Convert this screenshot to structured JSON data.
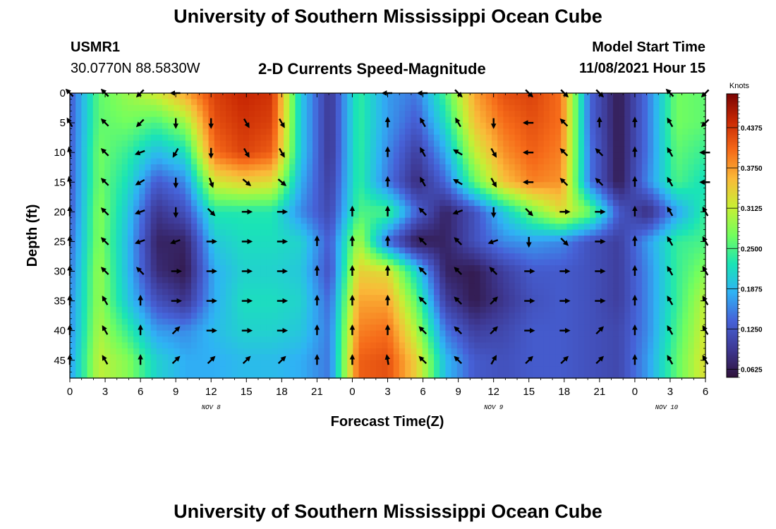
{
  "header": {
    "title": "University of Southern Mississippi Ocean Cube",
    "station_id": "USMR1",
    "station_coords": "30.0770N  88.5830W",
    "plot_title": "2-D Currents Speed-Magnitude",
    "model_label": "Model Start Time",
    "model_time": "11/08/2021 Hour 15",
    "footer_title": "University of Southern Mississippi Ocean Cube"
  },
  "chart_data": {
    "type": "heatmap",
    "title": "2-D Currents Speed-Magnitude",
    "xlabel": "Forecast Time(Z)",
    "ylabel": "Depth (ft)",
    "x_tick_labels": [
      "0",
      "3",
      "6",
      "9",
      "12",
      "15",
      "18",
      "21",
      "0",
      "3",
      "6",
      "9",
      "12",
      "15",
      "18",
      "21",
      "0",
      "3",
      "6"
    ],
    "date_labels": [
      {
        "label": "NOV 8",
        "at_tick": 4
      },
      {
        "label": "NOV 9",
        "at_tick": 12
      },
      {
        "label": "NOV 10",
        "at_tick": 16.9
      }
    ],
    "x_range_hours": [
      0,
      54
    ],
    "y_ticks": [
      0,
      5,
      10,
      15,
      20,
      25,
      30,
      35,
      40,
      45
    ],
    "y_range_ft": [
      0,
      48
    ],
    "y_inverted": true,
    "colorbar": {
      "unit": "Knots",
      "ticks": [
        "0.4375",
        "0.3750",
        "0.3125",
        "0.2500",
        "0.1875",
        "0.1250",
        "0.0625"
      ],
      "range": [
        0.05,
        0.49
      ]
    },
    "arrow_times_hours": [
      0,
      3,
      6,
      9,
      12,
      15,
      18,
      21,
      24,
      27,
      30,
      33,
      36,
      39,
      42,
      45,
      48,
      51,
      54
    ],
    "arrow_depths_ft": [
      0,
      5,
      10,
      15,
      20,
      25,
      30,
      35,
      40,
      45
    ],
    "speed_knots_by_depth": [
      [
        0.13,
        0.26,
        0.29,
        0.32,
        0.37,
        0.43,
        0.45,
        0.44,
        0.2,
        0.09,
        0.24,
        0.17,
        0.15,
        0.25,
        0.37,
        0.42,
        0.43,
        0.4,
        0.14,
        0.06,
        0.15,
        0.27,
        0.26
      ],
      [
        0.13,
        0.26,
        0.27,
        0.25,
        0.29,
        0.42,
        0.44,
        0.43,
        0.2,
        0.09,
        0.24,
        0.17,
        0.13,
        0.22,
        0.35,
        0.4,
        0.42,
        0.4,
        0.14,
        0.06,
        0.15,
        0.27,
        0.26
      ],
      [
        0.13,
        0.27,
        0.24,
        0.19,
        0.22,
        0.4,
        0.43,
        0.41,
        0.2,
        0.09,
        0.24,
        0.16,
        0.1,
        0.18,
        0.31,
        0.38,
        0.41,
        0.39,
        0.15,
        0.06,
        0.15,
        0.26,
        0.24
      ],
      [
        0.13,
        0.27,
        0.22,
        0.13,
        0.16,
        0.32,
        0.34,
        0.33,
        0.18,
        0.1,
        0.24,
        0.15,
        0.08,
        0.14,
        0.26,
        0.35,
        0.39,
        0.38,
        0.15,
        0.06,
        0.16,
        0.25,
        0.22
      ],
      [
        0.13,
        0.28,
        0.2,
        0.09,
        0.12,
        0.23,
        0.23,
        0.23,
        0.16,
        0.11,
        0.25,
        0.25,
        0.14,
        0.07,
        0.12,
        0.2,
        0.27,
        0.33,
        0.27,
        0.13,
        0.08,
        0.17,
        0.24,
        0.22
      ],
      [
        0.14,
        0.28,
        0.19,
        0.07,
        0.07,
        0.2,
        0.22,
        0.22,
        0.21,
        0.13,
        0.3,
        0.14,
        0.06,
        0.07,
        0.12,
        0.16,
        0.17,
        0.16,
        0.12,
        0.1,
        0.17,
        0.24,
        0.25
      ],
      [
        0.15,
        0.29,
        0.19,
        0.08,
        0.06,
        0.18,
        0.21,
        0.21,
        0.2,
        0.12,
        0.34,
        0.33,
        0.21,
        0.07,
        0.06,
        0.1,
        0.13,
        0.13,
        0.12,
        0.1,
        0.16,
        0.24,
        0.28
      ],
      [
        0.16,
        0.29,
        0.2,
        0.12,
        0.09,
        0.18,
        0.22,
        0.22,
        0.21,
        0.14,
        0.37,
        0.37,
        0.26,
        0.1,
        0.06,
        0.09,
        0.12,
        0.13,
        0.12,
        0.1,
        0.16,
        0.24,
        0.31
      ],
      [
        0.16,
        0.3,
        0.24,
        0.17,
        0.16,
        0.19,
        0.21,
        0.21,
        0.2,
        0.15,
        0.39,
        0.4,
        0.3,
        0.15,
        0.1,
        0.11,
        0.13,
        0.13,
        0.12,
        0.11,
        0.16,
        0.25,
        0.32
      ],
      [
        0.17,
        0.31,
        0.28,
        0.21,
        0.18,
        0.18,
        0.19,
        0.19,
        0.18,
        0.15,
        0.41,
        0.42,
        0.34,
        0.19,
        0.13,
        0.12,
        0.13,
        0.13,
        0.12,
        0.11,
        0.17,
        0.26,
        0.33
      ]
    ],
    "arrow_directions_deg_by_depth": [
      [
        135,
        135,
        225,
        180,
        null,
        null,
        null,
        null,
        null,
        180,
        180,
        315,
        null,
        315,
        315,
        315,
        null,
        135,
        225
      ],
      [
        120,
        135,
        225,
        270,
        270,
        300,
        300,
        null,
        null,
        90,
        120,
        120,
        270,
        180,
        135,
        90,
        90,
        120,
        225
      ],
      [
        100,
        135,
        200,
        240,
        270,
        300,
        300,
        null,
        null,
        90,
        120,
        150,
        300,
        180,
        135,
        135,
        90,
        120,
        180
      ],
      [
        100,
        135,
        210,
        270,
        290,
        320,
        320,
        null,
        null,
        90,
        120,
        150,
        300,
        180,
        135,
        135,
        90,
        120,
        180
      ],
      [
        90,
        135,
        200,
        270,
        315,
        0,
        0,
        null,
        90,
        90,
        135,
        200,
        270,
        315,
        0,
        0,
        90,
        120,
        120
      ],
      [
        90,
        135,
        200,
        200,
        0,
        0,
        0,
        90,
        90,
        90,
        135,
        135,
        200,
        270,
        315,
        0,
        90,
        120,
        120
      ],
      [
        90,
        135,
        135,
        0,
        0,
        0,
        0,
        90,
        90,
        90,
        135,
        135,
        135,
        0,
        0,
        0,
        90,
        120,
        120
      ],
      [
        90,
        120,
        90,
        0,
        0,
        0,
        0,
        90,
        90,
        90,
        135,
        135,
        45,
        0,
        0,
        0,
        90,
        120,
        120
      ],
      [
        90,
        120,
        90,
        45,
        0,
        0,
        0,
        90,
        90,
        90,
        135,
        135,
        45,
        0,
        0,
        45,
        90,
        120,
        120
      ],
      [
        90,
        120,
        90,
        45,
        45,
        45,
        45,
        90,
        90,
        100,
        135,
        135,
        60,
        45,
        45,
        45,
        90,
        120,
        120
      ]
    ]
  }
}
